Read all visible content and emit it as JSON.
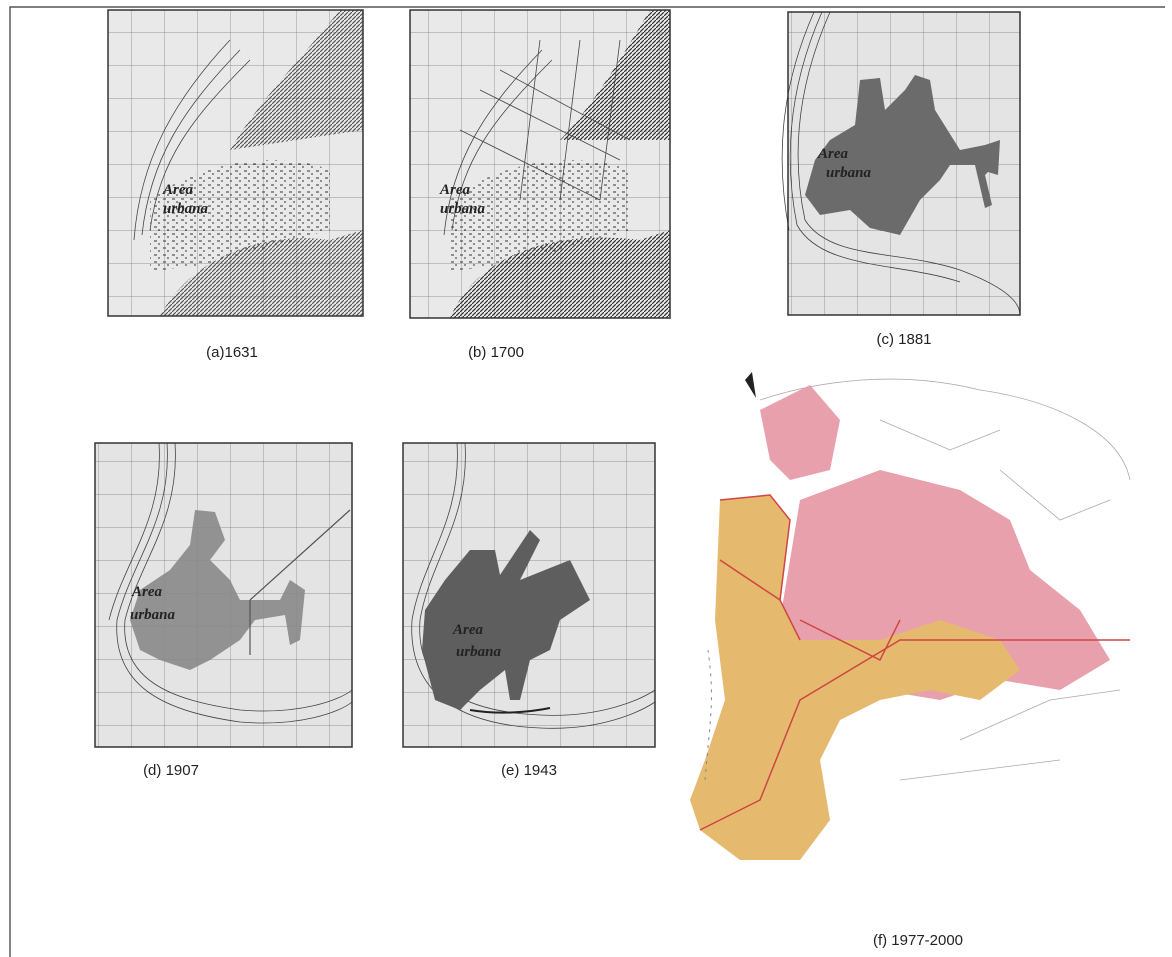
{
  "panels": [
    {
      "caption": "(a)1631",
      "label": [
        "Area",
        "urbana"
      ]
    },
    {
      "caption": "(b) 1700",
      "label": [
        "Area",
        "urbana"
      ]
    },
    {
      "caption": "(c) 1881",
      "label": [
        "Area",
        "urbana"
      ]
    },
    {
      "caption": "(d) 1907",
      "label": [
        "Area",
        "urbana"
      ]
    },
    {
      "caption": "(e) 1943",
      "label": [
        "Area",
        "urbana"
      ]
    },
    {
      "caption": "(f) 1977-2000"
    }
  ]
}
